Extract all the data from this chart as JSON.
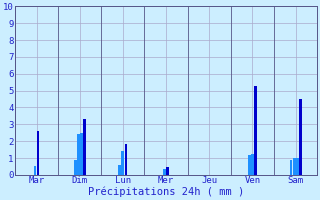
{
  "title": "",
  "xlabel": "Précipitations 24h ( mm )",
  "ylabel": "",
  "background_color": "#cceeff",
  "grid_color": "#aaaacc",
  "text_color": "#2222cc",
  "ylim": [
    0,
    10
  ],
  "yticks": [
    0,
    1,
    2,
    3,
    4,
    5,
    6,
    7,
    8,
    9,
    10
  ],
  "day_labels": [
    "Mar",
    "Dim",
    "Lun",
    "Mer",
    "Jeu",
    "Ven",
    "Sam"
  ],
  "separator_color": "#555588",
  "bars": [
    {
      "day": "Mar",
      "values": [
        0.55,
        2.6
      ],
      "colors": [
        "#1e90ff",
        "#0000cc"
      ]
    },
    {
      "day": "Dim",
      "values": [
        0.9,
        2.4,
        2.5,
        3.3
      ],
      "colors": [
        "#1e90ff",
        "#1e90ff",
        "#1e90ff",
        "#0000cc"
      ]
    },
    {
      "day": "Lun",
      "values": [
        0.6,
        1.4,
        1.85
      ],
      "colors": [
        "#1e90ff",
        "#1e90ff",
        "#0000cc"
      ]
    },
    {
      "day": "Mer",
      "values": [
        0.35,
        0.45
      ],
      "colors": [
        "#1e90ff",
        "#0000cc"
      ]
    },
    {
      "day": "Jeu",
      "values": [],
      "colors": []
    },
    {
      "day": "Ven",
      "values": [
        1.2,
        1.25,
        5.3
      ],
      "colors": [
        "#1e90ff",
        "#1e90ff",
        "#0000cc"
      ]
    },
    {
      "day": "Sam",
      "values": [
        0.9,
        1.0,
        1.0,
        4.5
      ],
      "colors": [
        "#1e90ff",
        "#1e90ff",
        "#1e90ff",
        "#0000cc"
      ]
    }
  ]
}
